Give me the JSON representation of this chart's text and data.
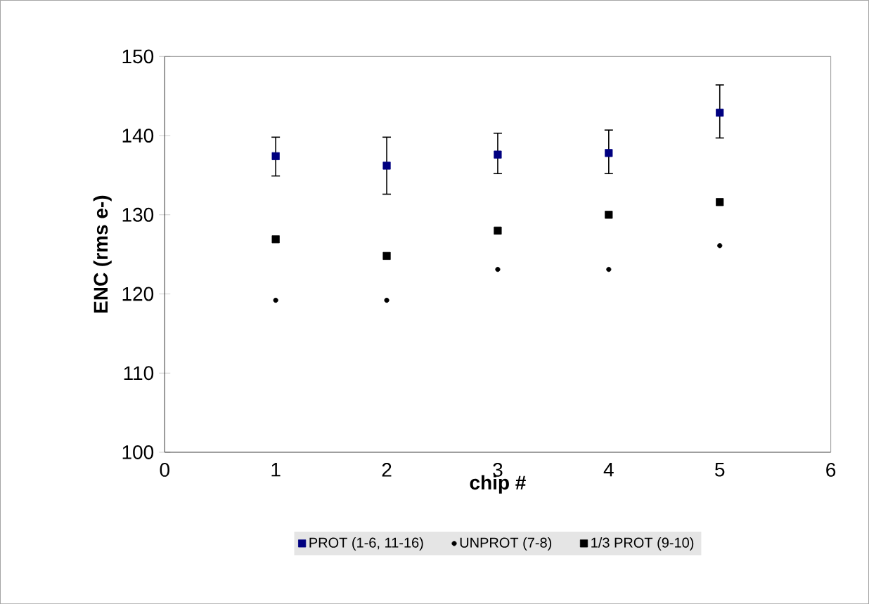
{
  "chart_data": {
    "type": "scatter",
    "xlabel": "chip #",
    "ylabel": "ENC (rms e-)",
    "xlim": [
      0,
      6
    ],
    "xticks": [
      0,
      1,
      2,
      3,
      4,
      5,
      6
    ],
    "ylim": [
      100,
      150
    ],
    "yticks": [
      100,
      110,
      120,
      130,
      140,
      150
    ],
    "x": [
      1,
      2,
      3,
      4,
      5
    ],
    "legend": "bottom",
    "grid": false,
    "series": [
      {
        "name": "PROT (1-6, 11-16)",
        "color": "#000080",
        "marker": "square",
        "values": [
          137.4,
          136.2,
          137.6,
          137.8,
          142.9
        ],
        "errors": [
          [
            134.9,
            139.8
          ],
          [
            132.6,
            139.8
          ],
          [
            135.2,
            140.3
          ],
          [
            135.2,
            140.7
          ],
          [
            139.7,
            146.4
          ]
        ]
      },
      {
        "name": "UNPROT (7-8)",
        "color": "#000000",
        "marker": "circle",
        "values": [
          119.2,
          119.2,
          123.1,
          123.1,
          126.1
        ]
      },
      {
        "name": "1/3 PROT (9-10)",
        "color": "#000000",
        "marker": "square",
        "values": [
          126.9,
          124.8,
          128.0,
          130.0,
          131.6
        ]
      }
    ]
  }
}
